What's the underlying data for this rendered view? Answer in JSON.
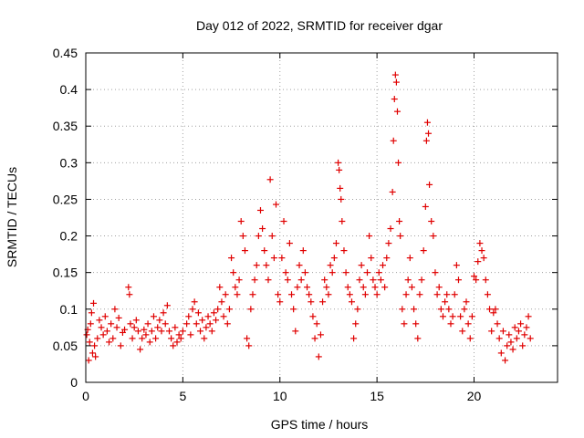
{
  "chart_data": {
    "type": "scatter",
    "title": "Day 012 of 2022, SRMTID for receiver dgar",
    "xlabel": "GPS time / hours",
    "ylabel": "SRMTID / TECUs",
    "xlim": [
      0,
      24.3
    ],
    "ylim": [
      0,
      0.45
    ],
    "xticks": [
      0,
      5,
      10,
      15,
      20
    ],
    "xtick_labels": [
      "0",
      "5",
      "10",
      "15",
      "20"
    ],
    "yticks": [
      0,
      0.05,
      0.1,
      0.15,
      0.2,
      0.25,
      0.3,
      0.35,
      0.4,
      0.45
    ],
    "ytick_labels": [
      "0",
      "0.05",
      "0.1",
      "0.15",
      "0.2",
      "0.25",
      "0.3",
      "0.35",
      "0.4",
      "0.45"
    ],
    "grid": true,
    "marker": "+",
    "color": "#e00000",
    "series": [
      {
        "name": "SRMTID",
        "points": [
          [
            0.05,
            0.065
          ],
          [
            0.1,
            0.072
          ],
          [
            0.15,
            0.03
          ],
          [
            0.2,
            0.055
          ],
          [
            0.25,
            0.08
          ],
          [
            0.3,
            0.095
          ],
          [
            0.35,
            0.04
          ],
          [
            0.4,
            0.108
          ],
          [
            0.45,
            0.05
          ],
          [
            0.5,
            0.035
          ],
          [
            0.6,
            0.06
          ],
          [
            0.7,
            0.085
          ],
          [
            0.8,
            0.075
          ],
          [
            0.9,
            0.065
          ],
          [
            1.0,
            0.09
          ],
          [
            1.1,
            0.07
          ],
          [
            1.2,
            0.055
          ],
          [
            1.3,
            0.08
          ],
          [
            1.4,
            0.06
          ],
          [
            1.5,
            0.1
          ],
          [
            1.6,
            0.075
          ],
          [
            1.7,
            0.088
          ],
          [
            1.8,
            0.05
          ],
          [
            1.9,
            0.068
          ],
          [
            2.0,
            0.072
          ],
          [
            2.2,
            0.13
          ],
          [
            2.25,
            0.12
          ],
          [
            2.3,
            0.08
          ],
          [
            2.4,
            0.06
          ],
          [
            2.5,
            0.075
          ],
          [
            2.6,
            0.085
          ],
          [
            2.7,
            0.07
          ],
          [
            2.8,
            0.045
          ],
          [
            2.9,
            0.06
          ],
          [
            3.0,
            0.072
          ],
          [
            3.1,
            0.065
          ],
          [
            3.2,
            0.08
          ],
          [
            3.3,
            0.055
          ],
          [
            3.4,
            0.07
          ],
          [
            3.5,
            0.09
          ],
          [
            3.6,
            0.06
          ],
          [
            3.7,
            0.075
          ],
          [
            3.8,
            0.085
          ],
          [
            3.9,
            0.07
          ],
          [
            4.0,
            0.095
          ],
          [
            4.1,
            0.08
          ],
          [
            4.2,
            0.105
          ],
          [
            4.3,
            0.07
          ],
          [
            4.4,
            0.06
          ],
          [
            4.5,
            0.05
          ],
          [
            4.6,
            0.075
          ],
          [
            4.7,
            0.055
          ],
          [
            4.8,
            0.065
          ],
          [
            4.9,
            0.06
          ],
          [
            5.0,
            0.07
          ],
          [
            5.2,
            0.08
          ],
          [
            5.3,
            0.09
          ],
          [
            5.4,
            0.065
          ],
          [
            5.5,
            0.1
          ],
          [
            5.6,
            0.11
          ],
          [
            5.7,
            0.08
          ],
          [
            5.8,
            0.095
          ],
          [
            5.9,
            0.07
          ],
          [
            6.0,
            0.085
          ],
          [
            6.1,
            0.06
          ],
          [
            6.2,
            0.075
          ],
          [
            6.3,
            0.09
          ],
          [
            6.4,
            0.08
          ],
          [
            6.5,
            0.07
          ],
          [
            6.6,
            0.095
          ],
          [
            6.7,
            0.085
          ],
          [
            6.8,
            0.1
          ],
          [
            6.9,
            0.13
          ],
          [
            7.0,
            0.11
          ],
          [
            7.1,
            0.09
          ],
          [
            7.2,
            0.12
          ],
          [
            7.3,
            0.08
          ],
          [
            7.4,
            0.1
          ],
          [
            7.5,
            0.17
          ],
          [
            7.6,
            0.15
          ],
          [
            7.7,
            0.13
          ],
          [
            7.8,
            0.12
          ],
          [
            7.9,
            0.14
          ],
          [
            8.0,
            0.22
          ],
          [
            8.1,
            0.2
          ],
          [
            8.2,
            0.18
          ],
          [
            8.3,
            0.06
          ],
          [
            8.4,
            0.05
          ],
          [
            8.5,
            0.1
          ],
          [
            8.6,
            0.12
          ],
          [
            8.7,
            0.14
          ],
          [
            8.8,
            0.16
          ],
          [
            8.9,
            0.2
          ],
          [
            9.0,
            0.235
          ],
          [
            9.1,
            0.21
          ],
          [
            9.2,
            0.18
          ],
          [
            9.3,
            0.16
          ],
          [
            9.4,
            0.14
          ],
          [
            9.5,
            0.277
          ],
          [
            9.6,
            0.2
          ],
          [
            9.7,
            0.17
          ],
          [
            9.8,
            0.243
          ],
          [
            9.9,
            0.12
          ],
          [
            10.0,
            0.11
          ],
          [
            10.1,
            0.17
          ],
          [
            10.2,
            0.22
          ],
          [
            10.3,
            0.15
          ],
          [
            10.4,
            0.14
          ],
          [
            10.5,
            0.19
          ],
          [
            10.6,
            0.12
          ],
          [
            10.7,
            0.1
          ],
          [
            10.8,
            0.07
          ],
          [
            10.9,
            0.13
          ],
          [
            11.0,
            0.16
          ],
          [
            11.1,
            0.14
          ],
          [
            11.2,
            0.18
          ],
          [
            11.3,
            0.15
          ],
          [
            11.4,
            0.13
          ],
          [
            11.5,
            0.12
          ],
          [
            11.6,
            0.11
          ],
          [
            11.7,
            0.09
          ],
          [
            11.8,
            0.06
          ],
          [
            11.9,
            0.08
          ],
          [
            12.0,
            0.035
          ],
          [
            12.1,
            0.065
          ],
          [
            12.2,
            0.11
          ],
          [
            12.3,
            0.14
          ],
          [
            12.4,
            0.13
          ],
          [
            12.5,
            0.12
          ],
          [
            12.6,
            0.16
          ],
          [
            12.7,
            0.15
          ],
          [
            12.8,
            0.17
          ],
          [
            12.9,
            0.19
          ],
          [
            13.0,
            0.3
          ],
          [
            13.05,
            0.29
          ],
          [
            13.1,
            0.265
          ],
          [
            13.15,
            0.25
          ],
          [
            13.2,
            0.22
          ],
          [
            13.3,
            0.18
          ],
          [
            13.4,
            0.15
          ],
          [
            13.5,
            0.13
          ],
          [
            13.6,
            0.12
          ],
          [
            13.7,
            0.11
          ],
          [
            13.8,
            0.06
          ],
          [
            13.9,
            0.08
          ],
          [
            14.0,
            0.1
          ],
          [
            14.1,
            0.14
          ],
          [
            14.2,
            0.16
          ],
          [
            14.3,
            0.13
          ],
          [
            14.4,
            0.12
          ],
          [
            14.5,
            0.15
          ],
          [
            14.6,
            0.2
          ],
          [
            14.7,
            0.17
          ],
          [
            14.8,
            0.14
          ],
          [
            14.9,
            0.13
          ],
          [
            15.0,
            0.12
          ],
          [
            15.1,
            0.15
          ],
          [
            15.2,
            0.14
          ],
          [
            15.3,
            0.16
          ],
          [
            15.4,
            0.13
          ],
          [
            15.5,
            0.17
          ],
          [
            15.6,
            0.19
          ],
          [
            15.7,
            0.21
          ],
          [
            15.8,
            0.26
          ],
          [
            15.85,
            0.33
          ],
          [
            15.9,
            0.387
          ],
          [
            15.95,
            0.42
          ],
          [
            16.0,
            0.41
          ],
          [
            16.05,
            0.37
          ],
          [
            16.1,
            0.3
          ],
          [
            16.15,
            0.22
          ],
          [
            16.2,
            0.2
          ],
          [
            16.3,
            0.1
          ],
          [
            16.4,
            0.08
          ],
          [
            16.5,
            0.12
          ],
          [
            16.6,
            0.14
          ],
          [
            16.7,
            0.17
          ],
          [
            16.8,
            0.13
          ],
          [
            16.9,
            0.1
          ],
          [
            17.0,
            0.08
          ],
          [
            17.1,
            0.06
          ],
          [
            17.2,
            0.12
          ],
          [
            17.3,
            0.14
          ],
          [
            17.4,
            0.18
          ],
          [
            17.5,
            0.24
          ],
          [
            17.55,
            0.33
          ],
          [
            17.6,
            0.355
          ],
          [
            17.65,
            0.34
          ],
          [
            17.7,
            0.27
          ],
          [
            17.8,
            0.22
          ],
          [
            17.9,
            0.2
          ],
          [
            18.0,
            0.15
          ],
          [
            18.1,
            0.12
          ],
          [
            18.2,
            0.13
          ],
          [
            18.3,
            0.1
          ],
          [
            18.4,
            0.09
          ],
          [
            18.5,
            0.11
          ],
          [
            18.6,
            0.12
          ],
          [
            18.7,
            0.1
          ],
          [
            18.8,
            0.08
          ],
          [
            18.9,
            0.09
          ],
          [
            19.0,
            0.12
          ],
          [
            19.1,
            0.16
          ],
          [
            19.2,
            0.14
          ],
          [
            19.3,
            0.09
          ],
          [
            19.4,
            0.07
          ],
          [
            19.5,
            0.1
          ],
          [
            19.6,
            0.11
          ],
          [
            19.7,
            0.08
          ],
          [
            19.8,
            0.06
          ],
          [
            19.9,
            0.09
          ],
          [
            20.0,
            0.145
          ],
          [
            20.1,
            0.14
          ],
          [
            20.2,
            0.165
          ],
          [
            20.3,
            0.19
          ],
          [
            20.4,
            0.18
          ],
          [
            20.5,
            0.17
          ],
          [
            20.6,
            0.14
          ],
          [
            20.7,
            0.12
          ],
          [
            20.8,
            0.1
          ],
          [
            20.9,
            0.07
          ],
          [
            21.0,
            0.095
          ],
          [
            21.1,
            0.1
          ],
          [
            21.2,
            0.08
          ],
          [
            21.3,
            0.06
          ],
          [
            21.4,
            0.04
          ],
          [
            21.5,
            0.07
          ],
          [
            21.6,
            0.03
          ],
          [
            21.7,
            0.05
          ],
          [
            21.8,
            0.065
          ],
          [
            21.9,
            0.055
          ],
          [
            22.0,
            0.045
          ],
          [
            22.1,
            0.075
          ],
          [
            22.2,
            0.06
          ],
          [
            22.3,
            0.07
          ],
          [
            22.4,
            0.08
          ],
          [
            22.5,
            0.05
          ],
          [
            22.6,
            0.065
          ],
          [
            22.7,
            0.075
          ],
          [
            22.8,
            0.09
          ],
          [
            22.9,
            0.06
          ]
        ]
      }
    ]
  }
}
